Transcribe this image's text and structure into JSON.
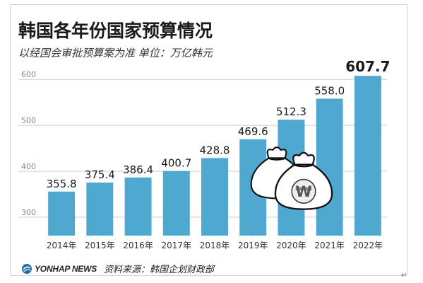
{
  "title": "韩国各年份国家预算情况",
  "subtitle": "以经国会审批预算案为准 单位：万亿韩元",
  "source": "资料来源：韩国企划财政部",
  "logo_text": "YONHAP NEWS",
  "currency_symbol": "₩",
  "paragraph_mark": "↵",
  "colors": {
    "bar": "#4fa8cf",
    "bar_top": "#3a93bd",
    "grid": "#cfcfcf",
    "axis_text": "#888888",
    "value_text": "#1a1a1a",
    "logo": "#1f6fa6"
  },
  "chart_data": {
    "type": "bar",
    "title": "韩国各年份国家预算情况",
    "subtitle": "以经国会审批预算案为准 单位：万亿韩元",
    "categories": [
      "2014年",
      "2015年",
      "2016年",
      "2017年",
      "2018年",
      "2019年",
      "2020年",
      "2021年",
      "2022年"
    ],
    "values": [
      355.8,
      375.4,
      386.4,
      400.7,
      428.8,
      469.6,
      512.3,
      558.0,
      607.7
    ],
    "value_labels": [
      "355.8",
      "375.4",
      "386.4",
      "400.7",
      "428.8",
      "469.6",
      "512.3",
      "558.0",
      "607.7"
    ],
    "highlight_index": 8,
    "y_ticks": [
      300,
      400,
      500,
      600
    ],
    "ylim": [
      260,
      625
    ],
    "grid": true,
    "xlabel": "",
    "ylabel": ""
  }
}
